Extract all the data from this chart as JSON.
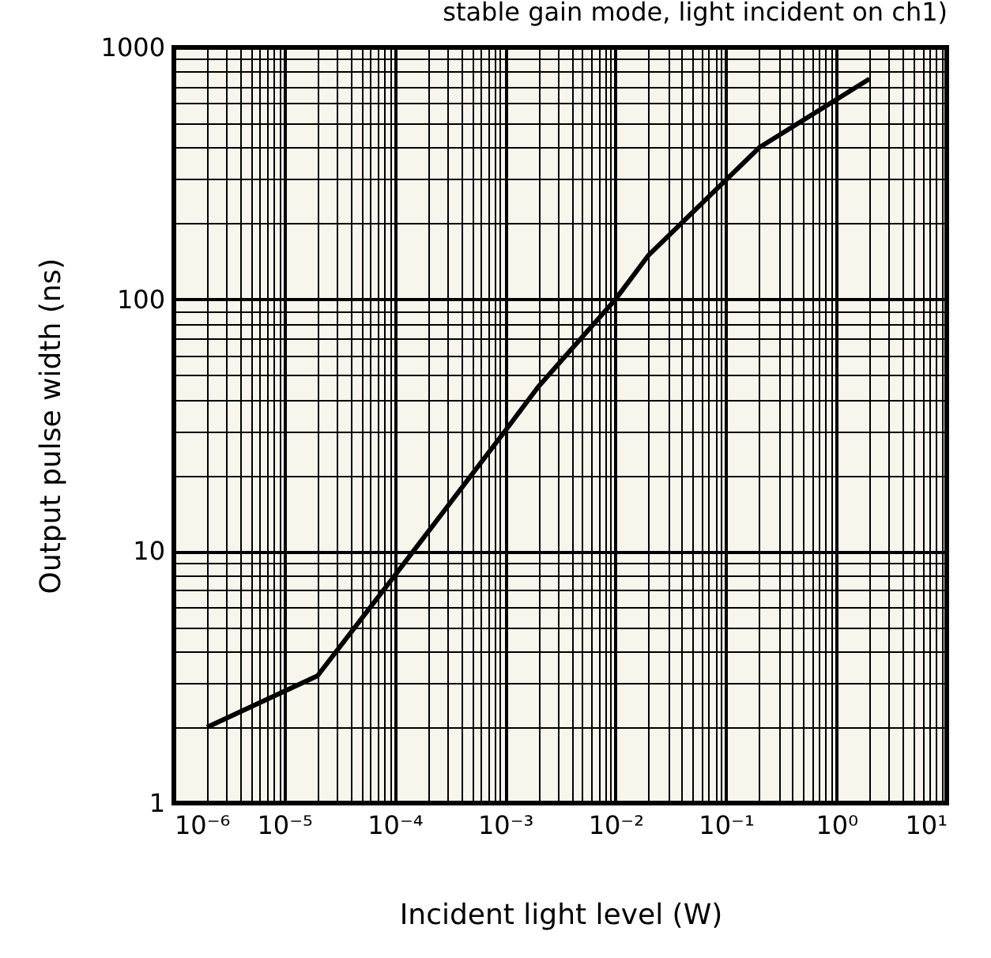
{
  "chart_data": {
    "type": "line",
    "title": "stable gain mode, light incident on ch1)",
    "xlabel": "Incident light level (W)",
    "ylabel": "Output pulse width (ns)",
    "log": "xy",
    "grid": true,
    "line_style": "solid",
    "xlim": [
      1e-06,
      10
    ],
    "ylim": [
      1,
      1000
    ],
    "xticks": [
      {
        "value": 1e-06,
        "label": "10⁻⁶"
      },
      {
        "value": 1e-05,
        "label": "10⁻⁵"
      },
      {
        "value": 0.0001,
        "label": "10⁻⁴"
      },
      {
        "value": 0.001,
        "label": "10⁻³"
      },
      {
        "value": 0.01,
        "label": "10⁻²"
      },
      {
        "value": 0.1,
        "label": "10⁻¹"
      },
      {
        "value": 1,
        "label": "10⁰"
      },
      {
        "value": 10,
        "label": "10¹"
      }
    ],
    "yticks": [
      1,
      10,
      100,
      1000
    ],
    "series": [
      {
        "color": "#000000",
        "x": [
          2e-06,
          2e-05,
          0.0001,
          0.001,
          0.002,
          0.01,
          0.02,
          0.2,
          2
        ],
        "values": [
          2,
          3.2,
          8,
          30,
          45,
          100,
          150,
          400,
          750
        ]
      }
    ]
  }
}
